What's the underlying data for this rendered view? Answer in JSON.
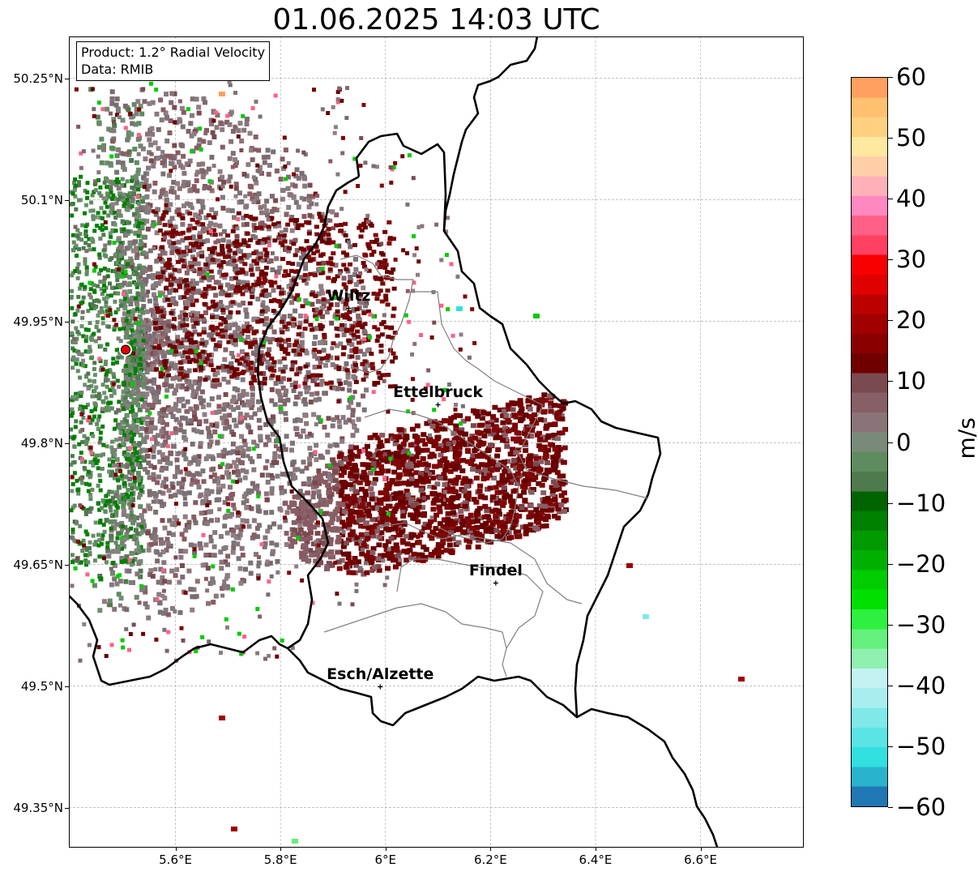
{
  "title": "01.06.2025 14:03 UTC",
  "info_box": {
    "product": "Product: 1.2° Radial Velocity",
    "data": "Data: RMIB"
  },
  "axes": {
    "lat_ticks": [
      "50.25°N",
      "50.1°N",
      "49.95°N",
      "49.8°N",
      "49.65°N",
      "49.5°N",
      "49.35°N"
    ],
    "lon_ticks": [
      "5.6°E",
      "5.8°E",
      "6°E",
      "6.2°E",
      "6.4°E",
      "6.6°E"
    ],
    "lat_values": [
      50.25,
      50.1,
      49.95,
      49.8,
      49.65,
      49.5,
      49.35
    ],
    "lon_values": [
      5.6,
      5.8,
      6.0,
      6.2,
      6.4,
      6.6
    ]
  },
  "cities": [
    {
      "name": "Wiltz",
      "lon": 5.93,
      "lat": 49.966
    },
    {
      "name": "Ettelbruck",
      "lon": 6.1,
      "lat": 49.847
    },
    {
      "name": "Findel",
      "lon": 6.21,
      "lat": 49.627
    },
    {
      "name": "Esch/Alzette",
      "lon": 5.99,
      "lat": 49.499
    }
  ],
  "radar_site": {
    "lon": 5.505,
    "lat": 49.915
  },
  "colorbar": {
    "label": "m/s",
    "min": -60,
    "max": 60,
    "tick_labels": [
      "60",
      "50",
      "40",
      "30",
      "20",
      "10",
      "0",
      "−10",
      "−20",
      "−30",
      "−40",
      "−50",
      "−60"
    ],
    "tick_values": [
      60,
      50,
      40,
      30,
      20,
      10,
      0,
      -10,
      -20,
      -30,
      -40,
      -50,
      -60
    ],
    "colors": [
      "#1f78b4",
      "#28b4cc",
      "#32e0e0",
      "#5ae4e4",
      "#80e8e8",
      "#a8eeee",
      "#c4f2f2",
      "#8ff0b0",
      "#64f07c",
      "#2ef040",
      "#00e000",
      "#00cc00",
      "#00b000",
      "#009a00",
      "#008000",
      "#006400",
      "#4e7a4e",
      "#5e8c5e",
      "#7a8a7a",
      "#8a7478",
      "#866066",
      "#7a4a50",
      "#700000",
      "#8a0000",
      "#a00000",
      "#bc0000",
      "#e00000",
      "#f80000",
      "#ff4060",
      "#ff6088",
      "#ff88c0",
      "#ffb0b8",
      "#ffd0a8",
      "#ffe8a0",
      "#ffd080",
      "#ffc070",
      "#ffa060"
    ]
  }
}
